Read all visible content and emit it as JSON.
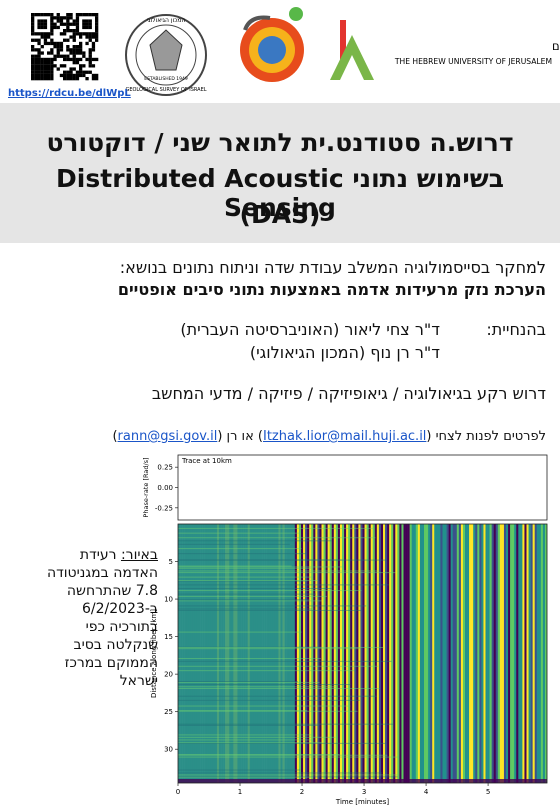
{
  "header": {
    "link": "https://rdcu.be/dlWpL",
    "hebrew_university": {
      "name_he": "האוניברסיטה העברית בירושלים",
      "name_en": "THE HEBREW UNIVERSITY OF JERUSALEM"
    },
    "geological_survey": {
      "name_he": "המכון הגיאולוגי",
      "name_en": "GEOLOGICAL SURVEY OF ISRAEL",
      "established": "ESTABLISHED 1949"
    }
  },
  "title": {
    "lines": [
      "דרוש.ה סטודנט.ית לתואר שני / דוקטורט",
      "בשימוש נתוני Distributed Acoustic Sensing",
      "(DAS)"
    ]
  },
  "body": {
    "intro": "למחקר בסייסמולוגיה המשלב עבודת שדה וניתוח נתונים בנושא:",
    "topic": "הערכת נזק מרעידות אדמה באמצעות נתוני סיבים אופטיים",
    "supervision_label": "בהנחיית:",
    "supervisors": [
      "ד\"ר צחי ליאור (האוניברסיטה העברית)",
      "ד\"ר רן נוף (המכון הגיאולוגי)"
    ],
    "background": "דרוש רקע בגיאולוגיה / גיאופיזיקה / פיזיקה / מדעי המחשב",
    "contact": [
      "לפרטים לפנות לצחי (",
      "Itzhak.lior@mail.huji.ac.il",
      ") או רן (",
      "rann@gsi.gov.il",
      ")"
    ]
  },
  "figure": {
    "caption_label": "באיור:",
    "caption": "רעידת האדמה במגניטודה 7.8 שהתרחשה ב-6/2/2023 בתורכיה כפי שנקלטה בסיב הממוקם במרכז ישראל",
    "chart_data": [
      {
        "type": "line",
        "title": "Trace at 10km",
        "ylabel": "Phase-rate [Rad/s]",
        "xlim": [
          0,
          5.95
        ],
        "ylim": [
          -0.4,
          0.4
        ],
        "yticks": [
          -0.25,
          {
            "value": 0,
            "label": "0.00"
          },
          0.25
        ]
      },
      {
        "type": "heatmap",
        "xlabel": "Time [minutes]",
        "ylabel": "Distance along fiber [km]",
        "xlim": [
          0,
          5.95
        ],
        "xticks": [
          0,
          1,
          2,
          3,
          4,
          5
        ],
        "ylim": [
          34.5,
          0
        ],
        "yticks": [
          5,
          10,
          15,
          20,
          25,
          30
        ]
      }
    ]
  }
}
